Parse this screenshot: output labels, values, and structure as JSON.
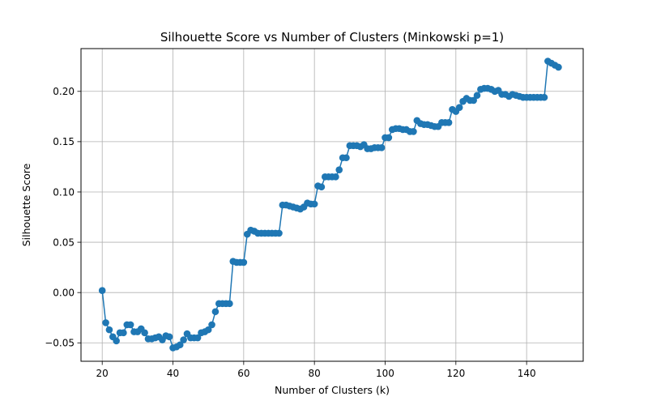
{
  "chart_data": {
    "type": "line",
    "title": "Silhouette Score vs Number of Clusters (Minkowski p=1)",
    "xlabel": "Number of Clusters (k)",
    "ylabel": "Silhouette Score",
    "xlim": [
      14,
      156
    ],
    "ylim": [
      -0.0683,
      0.2425
    ],
    "grid": true,
    "x_ticks": [
      {
        "value": 20,
        "label": "20"
      },
      {
        "value": 40,
        "label": "40"
      },
      {
        "value": 60,
        "label": "60"
      },
      {
        "value": 80,
        "label": "80"
      },
      {
        "value": 100,
        "label": "100"
      },
      {
        "value": 120,
        "label": "120"
      },
      {
        "value": 140,
        "label": "140"
      }
    ],
    "y_ticks": [
      {
        "value": -0.05,
        "label": "−0.05"
      },
      {
        "value": 0.0,
        "label": "0.00"
      },
      {
        "value": 0.05,
        "label": "0.05"
      },
      {
        "value": 0.1,
        "label": "0.10"
      },
      {
        "value": 0.15,
        "label": "0.15"
      },
      {
        "value": 0.2,
        "label": "0.20"
      }
    ],
    "series": [
      {
        "color": "#1f77b4",
        "marker": "circle",
        "x": [
          20,
          21,
          22,
          23,
          24,
          25,
          26,
          27,
          28,
          29,
          30,
          31,
          32,
          33,
          34,
          35,
          36,
          37,
          38,
          39,
          40,
          41,
          42,
          43,
          44,
          45,
          46,
          47,
          48,
          49,
          50,
          51,
          52,
          53,
          54,
          55,
          56,
          57,
          58,
          59,
          60,
          61,
          62,
          63,
          64,
          65,
          66,
          67,
          68,
          69,
          70,
          71,
          72,
          73,
          74,
          75,
          76,
          77,
          78,
          79,
          80,
          81,
          82,
          83,
          84,
          85,
          86,
          87,
          88,
          89,
          90,
          91,
          92,
          93,
          94,
          95,
          96,
          97,
          98,
          99,
          100,
          101,
          102,
          103,
          104,
          105,
          106,
          107,
          108,
          109,
          110,
          111,
          112,
          113,
          114,
          115,
          116,
          117,
          118,
          119,
          120,
          121,
          122,
          123,
          124,
          125,
          126,
          127,
          128,
          129,
          130,
          131,
          132,
          133,
          134,
          135,
          136,
          137,
          138,
          139,
          140,
          141,
          142,
          143,
          144,
          145,
          146,
          147,
          148,
          149
        ],
        "values": [
          0.002,
          -0.03,
          -0.037,
          -0.044,
          -0.048,
          -0.04,
          -0.04,
          -0.032,
          -0.032,
          -0.039,
          -0.039,
          -0.036,
          -0.04,
          -0.046,
          -0.046,
          -0.045,
          -0.044,
          -0.047,
          -0.043,
          -0.044,
          -0.055,
          -0.054,
          -0.052,
          -0.047,
          -0.041,
          -0.045,
          -0.045,
          -0.045,
          -0.04,
          -0.039,
          -0.037,
          -0.032,
          -0.019,
          -0.011,
          -0.011,
          -0.011,
          -0.011,
          0.031,
          0.03,
          0.03,
          0.03,
          0.058,
          0.062,
          0.061,
          0.059,
          0.059,
          0.059,
          0.059,
          0.059,
          0.059,
          0.059,
          0.087,
          0.087,
          0.086,
          0.085,
          0.084,
          0.083,
          0.085,
          0.089,
          0.088,
          0.088,
          0.106,
          0.105,
          0.115,
          0.115,
          0.115,
          0.115,
          0.122,
          0.134,
          0.134,
          0.146,
          0.146,
          0.146,
          0.145,
          0.147,
          0.143,
          0.143,
          0.144,
          0.144,
          0.144,
          0.154,
          0.154,
          0.162,
          0.163,
          0.163,
          0.162,
          0.162,
          0.16,
          0.16,
          0.171,
          0.168,
          0.167,
          0.167,
          0.166,
          0.165,
          0.165,
          0.169,
          0.169,
          0.169,
          0.182,
          0.18,
          0.184,
          0.19,
          0.193,
          0.191,
          0.191,
          0.196,
          0.202,
          0.203,
          0.203,
          0.202,
          0.2,
          0.201,
          0.197,
          0.197,
          0.195,
          0.197,
          0.196,
          0.195,
          0.194,
          0.194,
          0.194,
          0.194,
          0.194,
          0.194,
          0.194,
          0.23,
          0.228,
          0.226,
          0.224
        ]
      }
    ]
  }
}
